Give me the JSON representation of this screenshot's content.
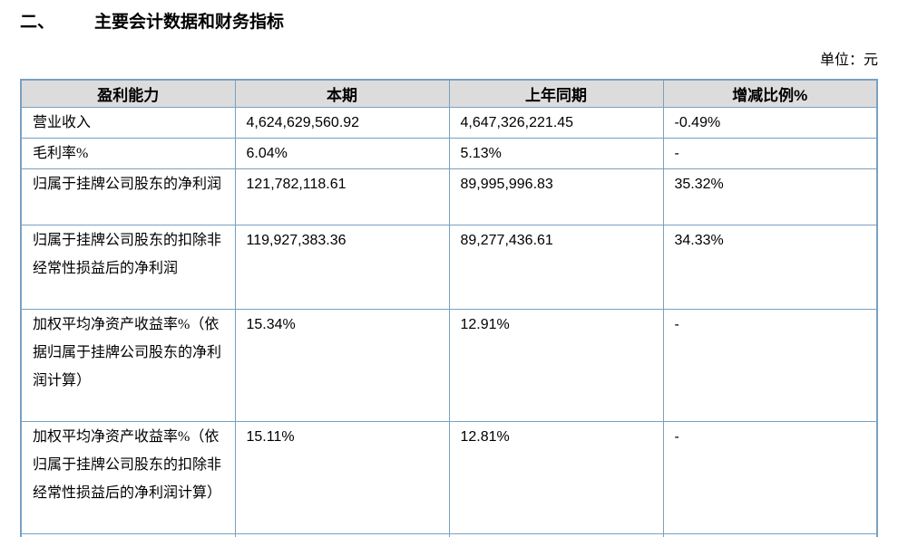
{
  "page": {
    "section_number": "二、",
    "section_title": "主要会计数据和财务指标",
    "unit_label": "单位：元"
  },
  "table": {
    "headers": [
      "盈利能力",
      "本期",
      "上年同期",
      "增减比例%"
    ],
    "rows": [
      {
        "indicator": "营业收入",
        "current": "4,624,629,560.92",
        "prior": "4,647,326,221.45",
        "change": "-0.49%"
      },
      {
        "indicator": "毛利率%",
        "current": "6.04%",
        "prior": "5.13%",
        "change": "-"
      },
      {
        "indicator": "归属于挂牌公司股东的净利润",
        "current": "121,782,118.61",
        "prior": "89,995,996.83",
        "change": "35.32%"
      },
      {
        "indicator": "归属于挂牌公司股东的扣除非经常性损益后的净利润",
        "current": "119,927,383.36",
        "prior": "89,277,436.61",
        "change": "34.33%"
      },
      {
        "indicator": "加权平均净资产收益率%（依据归属于挂牌公司股东的净利润计算）",
        "current": "15.34%",
        "prior": "12.91%",
        "change": "-"
      },
      {
        "indicator": "加权平均净资产收益率%（依归属于挂牌公司股东的扣除非经常性损益后的净利润计算）",
        "current": "15.11%",
        "prior": "12.81%",
        "change": "-"
      }
    ]
  },
  "colors": {
    "table_border": "#7aa0c0",
    "header_background": "#dddcdc",
    "text": "#000000"
  }
}
